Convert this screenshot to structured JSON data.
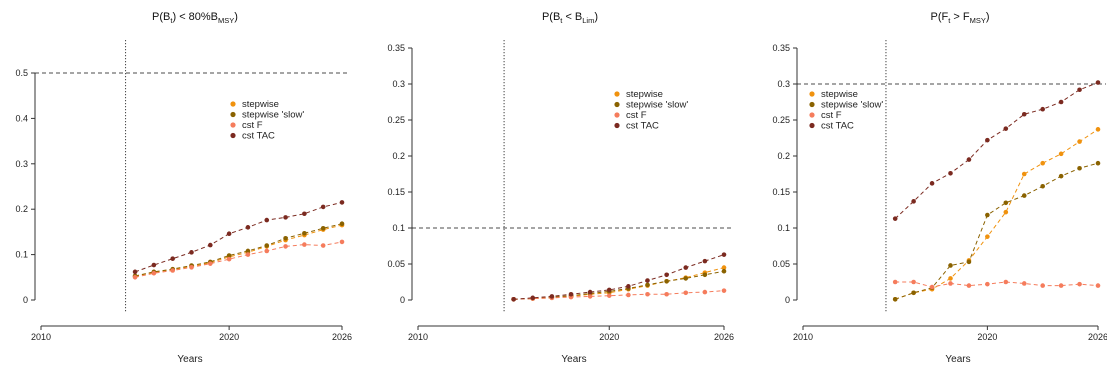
{
  "chart_data": [
    {
      "type": "line",
      "title": {
        "p": "P(B",
        "s1": "t",
        "m": ") < 80%B",
        "s2": "MSY",
        "e": ")"
      },
      "xlabel": "Years",
      "ylabel": "",
      "x": [
        2015,
        2016,
        2017,
        2018,
        2019,
        2020,
        2021,
        2022,
        2023,
        2024,
        2025,
        2026
      ],
      "xlim": [
        2010,
        2026
      ],
      "x_ticks": [
        "2010",
        "2020",
        "2026"
      ],
      "ylim": [
        0,
        0.5
      ],
      "y_ticks": [
        "0",
        "0.1",
        "0.2",
        "0.3",
        "0.4",
        "0.5"
      ],
      "hline": 0.5,
      "vline_x": 2014.5,
      "legend_position": "top-right",
      "series": [
        {
          "name": "stepwise",
          "color": "#f0920e",
          "values": [
            0.052,
            0.061,
            0.067,
            0.074,
            0.082,
            0.095,
            0.105,
            0.118,
            0.132,
            0.143,
            0.155,
            0.165
          ]
        },
        {
          "name": "stepwise 'slow'",
          "color": "#8a6200",
          "values": [
            0.053,
            0.062,
            0.068,
            0.076,
            0.084,
            0.098,
            0.108,
            0.12,
            0.136,
            0.147,
            0.158,
            0.168
          ]
        },
        {
          "name": "cst F",
          "color": "#f57c5c",
          "values": [
            0.05,
            0.059,
            0.065,
            0.072,
            0.08,
            0.09,
            0.1,
            0.108,
            0.118,
            0.122,
            0.12,
            0.128
          ]
        },
        {
          "name": "cst TAC",
          "color": "#7b2a20",
          "values": [
            0.062,
            0.077,
            0.091,
            0.105,
            0.121,
            0.146,
            0.16,
            0.176,
            0.182,
            0.19,
            0.205,
            0.215
          ]
        }
      ]
    },
    {
      "type": "line",
      "title": {
        "p": "P(B",
        "s1": "t",
        "m": " < B",
        "s2": "Lim",
        "e": ")"
      },
      "xlabel": "Years",
      "ylabel": "",
      "x": [
        2015,
        2016,
        2017,
        2018,
        2019,
        2020,
        2021,
        2022,
        2023,
        2024,
        2025,
        2026
      ],
      "xlim": [
        2010,
        2026
      ],
      "x_ticks": [
        "2010",
        "2020",
        "2026"
      ],
      "ylim": [
        0,
        0.35
      ],
      "y_ticks": [
        "0",
        "0.05",
        "0.1",
        "0.15",
        "0.2",
        "0.25",
        "0.3",
        "0.35"
      ],
      "hline": 0.1,
      "vline_x": 2014.5,
      "legend_position": "top-right",
      "series": [
        {
          "name": "stepwise",
          "color": "#f0920e",
          "values": [
            0.001,
            0.002,
            0.003,
            0.005,
            0.008,
            0.01,
            0.015,
            0.02,
            0.026,
            0.031,
            0.038,
            0.045
          ]
        },
        {
          "name": "stepwise 'slow'",
          "color": "#8a6200",
          "values": [
            0.001,
            0.002,
            0.004,
            0.006,
            0.009,
            0.012,
            0.016,
            0.021,
            0.026,
            0.03,
            0.035,
            0.04
          ]
        },
        {
          "name": "cst F",
          "color": "#f57c5c",
          "values": [
            0.001,
            0.002,
            0.003,
            0.004,
            0.005,
            0.006,
            0.007,
            0.008,
            0.008,
            0.01,
            0.011,
            0.013
          ]
        },
        {
          "name": "cst TAC",
          "color": "#7b2a20",
          "values": [
            0.001,
            0.003,
            0.005,
            0.008,
            0.011,
            0.014,
            0.019,
            0.027,
            0.035,
            0.045,
            0.054,
            0.063
          ]
        }
      ]
    },
    {
      "type": "line",
      "title": {
        "p": "P(F",
        "s1": "t",
        "m": " > F",
        "s2": "MSY",
        "e": ")"
      },
      "xlabel": "Years",
      "ylabel": "",
      "x": [
        2015,
        2016,
        2017,
        2018,
        2019,
        2020,
        2021,
        2022,
        2023,
        2024,
        2025,
        2026
      ],
      "xlim": [
        2010,
        2026
      ],
      "x_ticks": [
        "2010",
        "2020",
        "2026"
      ],
      "ylim": [
        0,
        0.35
      ],
      "y_ticks": [
        "0",
        "0.05",
        "0.1",
        "0.15",
        "0.2",
        "0.25",
        "0.3",
        "0.35"
      ],
      "hline": 0.3,
      "vline_x": 2014.5,
      "legend_position": "top-left",
      "series": [
        {
          "name": "stepwise",
          "color": "#f0920e",
          "values": [
            0.001,
            0.01,
            0.015,
            0.03,
            0.055,
            0.088,
            0.122,
            0.175,
            0.19,
            0.203,
            0.22,
            0.237
          ]
        },
        {
          "name": "stepwise 'slow'",
          "color": "#8a6200",
          "values": [
            0.001,
            0.01,
            0.017,
            0.048,
            0.053,
            0.118,
            0.135,
            0.145,
            0.158,
            0.172,
            0.183,
            0.19
          ]
        },
        {
          "name": "cst F",
          "color": "#f57c5c",
          "values": [
            0.025,
            0.025,
            0.018,
            0.023,
            0.02,
            0.022,
            0.025,
            0.023,
            0.02,
            0.02,
            0.022,
            0.02
          ]
        },
        {
          "name": "cst TAC",
          "color": "#7b2a20",
          "values": [
            0.113,
            0.137,
            0.162,
            0.176,
            0.195,
            0.222,
            0.238,
            0.258,
            0.265,
            0.275,
            0.292,
            0.302
          ]
        }
      ]
    }
  ]
}
